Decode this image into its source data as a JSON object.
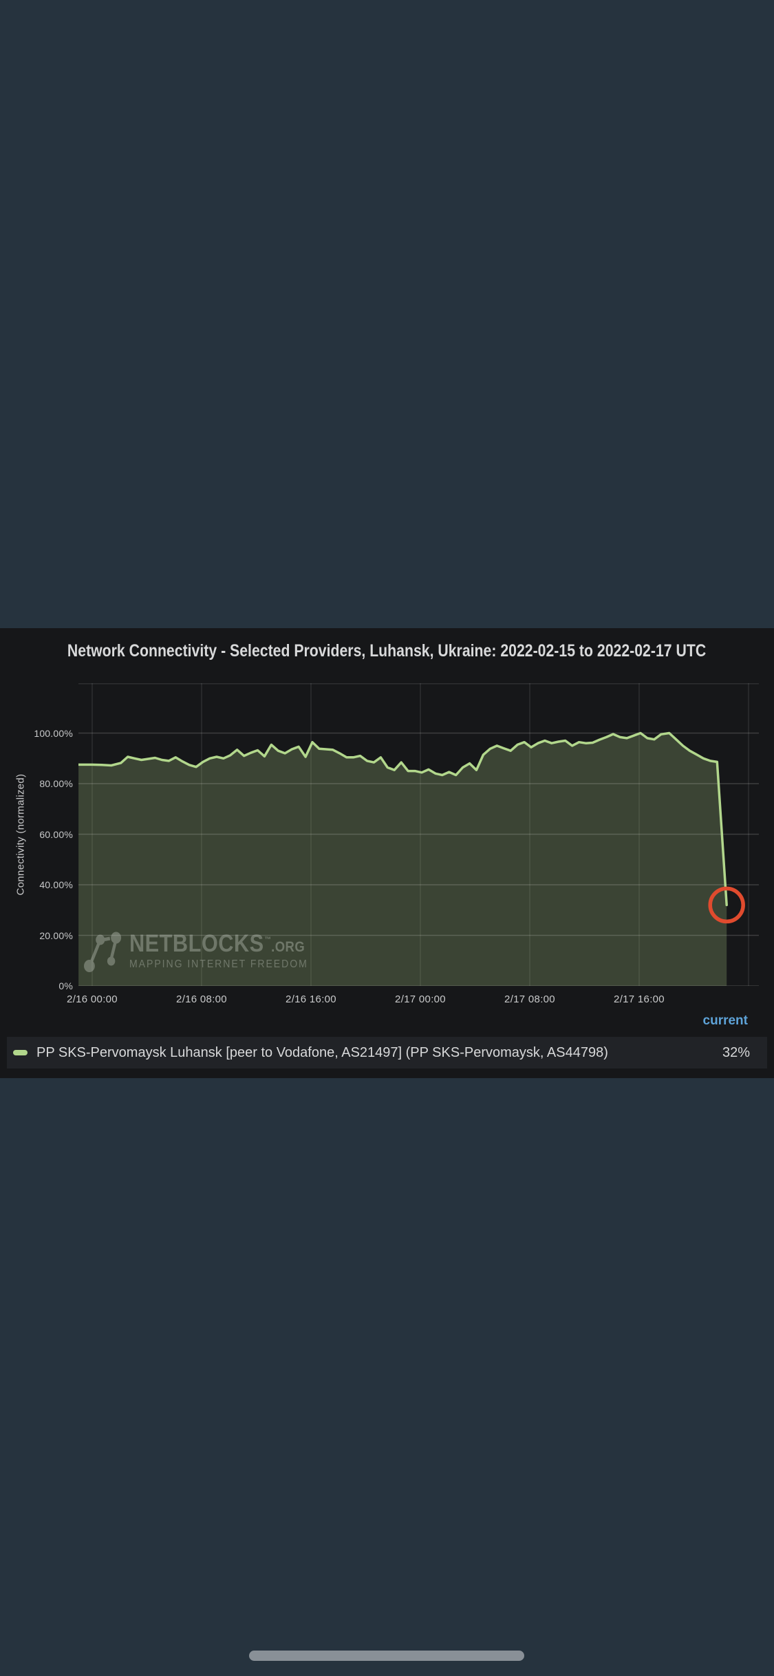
{
  "screen": {
    "background": "#26333e",
    "home_indicator_color": "#899097"
  },
  "panel": {
    "background": "#161719",
    "title": "Network Connectivity - Selected Providers, Luhansk, Ukraine: 2022-02-15 to 2022-02-17 UTC"
  },
  "watermark": {
    "brand": "NETBLOCKS",
    "trademark": "™",
    "suffix": ".ORG",
    "tagline": "MAPPING INTERNET FREEDOM"
  },
  "legend": {
    "header": "current",
    "rows": [
      {
        "label": "PP SKS-Pervomaysk Luhansk [peer to Vodafone, AS21497] (PP SKS-Pervomaysk, AS44798)",
        "value": "32%"
      }
    ]
  },
  "chart_data": {
    "type": "area",
    "title": "Network Connectivity - Selected Providers, Luhansk, Ukraine: 2022-02-15 to 2022-02-17 UTC",
    "xlabel": "",
    "ylabel": "Connectivity (normalized)",
    "x_unit": "hours since 2022-02-16 00:00 UTC",
    "xlim": [
      -1.0,
      48.75
    ],
    "ylim": [
      0,
      119.7
    ],
    "grid": true,
    "legend_position": "bottom",
    "x_ticks": [
      {
        "hours": 0,
        "label": "2/16 00:00"
      },
      {
        "hours": 8,
        "label": "2/16 08:00"
      },
      {
        "hours": 16,
        "label": "2/16 16:00"
      },
      {
        "hours": 24,
        "label": "2/17 00:00"
      },
      {
        "hours": 32,
        "label": "2/17 08:00"
      },
      {
        "hours": 40,
        "label": "2/17 16:00"
      }
    ],
    "extra_gridline_hours": [
      48
    ],
    "y_ticks": [
      {
        "value": 0,
        "label": "0%"
      },
      {
        "value": 20,
        "label": "20.00%"
      },
      {
        "value": 40,
        "label": "40.00%"
      },
      {
        "value": 60,
        "label": "60.00%"
      },
      {
        "value": 80,
        "label": "80.00%"
      },
      {
        "value": 100,
        "label": "100.00%"
      }
    ],
    "series": [
      {
        "name": "PP SKS-Pervomaysk Luhansk [peer to Vodafone, AS21497] (PP SKS-Pervomaysk, AS44798)",
        "color": "#b2d78c",
        "fill": "rgba(178,215,140,0.24)",
        "current": "32%",
        "points": [
          [
            -1,
            87.5
          ],
          [
            0,
            87.5
          ],
          [
            0.7,
            87.4
          ],
          [
            1.4,
            87.2
          ],
          [
            2.1,
            88.2
          ],
          [
            2.6,
            90.6
          ],
          [
            3.1,
            90
          ],
          [
            3.6,
            89.4
          ],
          [
            4.1,
            89.8
          ],
          [
            4.6,
            90.2
          ],
          [
            5.1,
            89.4
          ],
          [
            5.6,
            89
          ],
          [
            6.1,
            90.4
          ],
          [
            6.6,
            88.8
          ],
          [
            7.1,
            87.4
          ],
          [
            7.6,
            86.6
          ],
          [
            8.1,
            88.6
          ],
          [
            8.6,
            90
          ],
          [
            9.1,
            90.6
          ],
          [
            9.6,
            90
          ],
          [
            10.1,
            91.2
          ],
          [
            10.6,
            93.4
          ],
          [
            11.1,
            91
          ],
          [
            11.6,
            92.2
          ],
          [
            12.1,
            93.2
          ],
          [
            12.6,
            90.8
          ],
          [
            13.1,
            95.4
          ],
          [
            13.6,
            93
          ],
          [
            14.1,
            92
          ],
          [
            14.6,
            93.6
          ],
          [
            15.1,
            94.6
          ],
          [
            15.6,
            90.6
          ],
          [
            16.1,
            96.4
          ],
          [
            16.6,
            93.8
          ],
          [
            17.1,
            93.6
          ],
          [
            17.6,
            93.4
          ],
          [
            18.1,
            92
          ],
          [
            18.6,
            90.4
          ],
          [
            19.1,
            90.4
          ],
          [
            19.6,
            91
          ],
          [
            20.1,
            89
          ],
          [
            20.6,
            88.4
          ],
          [
            21.1,
            90.4
          ],
          [
            21.6,
            86.4
          ],
          [
            22.1,
            85.4
          ],
          [
            22.6,
            88.4
          ],
          [
            23.1,
            85
          ],
          [
            23.6,
            85
          ],
          [
            24.1,
            84.4
          ],
          [
            24.6,
            85.6
          ],
          [
            25.1,
            84
          ],
          [
            25.6,
            83.4
          ],
          [
            26.1,
            84.6
          ],
          [
            26.6,
            83.4
          ],
          [
            27.1,
            86.4
          ],
          [
            27.6,
            88
          ],
          [
            28.1,
            85.4
          ],
          [
            28.6,
            91.4
          ],
          [
            29.1,
            93.8
          ],
          [
            29.6,
            95
          ],
          [
            30.1,
            94
          ],
          [
            30.6,
            93
          ],
          [
            31.1,
            95.4
          ],
          [
            31.6,
            96.4
          ],
          [
            32.1,
            94.4
          ],
          [
            32.6,
            96
          ],
          [
            33.1,
            97
          ],
          [
            33.6,
            96
          ],
          [
            34.1,
            96.6
          ],
          [
            34.6,
            97
          ],
          [
            35.1,
            95
          ],
          [
            35.6,
            96.4
          ],
          [
            36.1,
            96
          ],
          [
            36.6,
            96.2
          ],
          [
            37.1,
            97.4
          ],
          [
            37.6,
            98.4
          ],
          [
            38.1,
            99.6
          ],
          [
            38.6,
            98.4
          ],
          [
            39.1,
            98
          ],
          [
            39.6,
            99
          ],
          [
            40.1,
            100
          ],
          [
            40.6,
            98
          ],
          [
            41.1,
            97.5
          ],
          [
            41.6,
            99.5
          ],
          [
            42.2,
            100
          ],
          [
            42.7,
            97.5
          ],
          [
            43.2,
            95
          ],
          [
            43.7,
            93
          ],
          [
            44.2,
            91.5
          ],
          [
            44.7,
            90
          ],
          [
            45.2,
            89
          ],
          [
            45.7,
            88.6
          ],
          [
            46.4,
            32
          ]
        ]
      }
    ],
    "annotation": {
      "type": "circle",
      "x_hours": 46.4,
      "y_value": 32,
      "radius": 24,
      "color": "#e04b2e"
    },
    "grid_colors": {
      "horizontal": "rgba(255,255,255,0.17)",
      "vertical": "rgba(255,255,255,0.10)"
    }
  }
}
